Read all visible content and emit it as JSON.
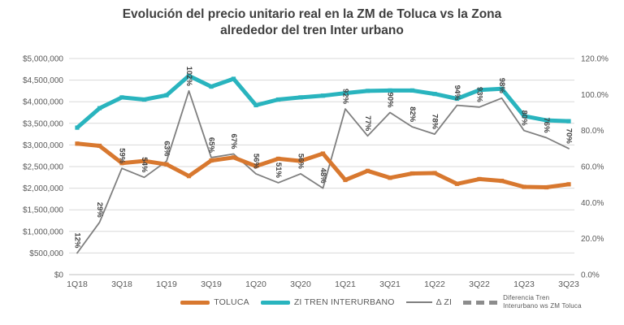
{
  "chart": {
    "title_line1": "Evolución del precio unitario real en la ZM de Toluca vs la Zona",
    "title_line2": "alrededor del tren Inter urbano"
  },
  "legend": {
    "toluca": "TOLUCA",
    "zi": "ZI TREN INTERURBANO",
    "delta": "Δ ZI",
    "diff_line1": "Diferencia Tren",
    "diff_line2": "Interurbano ws ZM Toluca"
  },
  "colors": {
    "toluca": "#d8782f",
    "zi": "#29b4be",
    "delta": "#7f7f7f",
    "gridline": "#d9d9d9",
    "axis_line": "#bfbfbf",
    "axis_text": "#595959",
    "label_text": "#404040"
  },
  "chart_data": {
    "type": "line",
    "title": "Evolución del precio unitario real en la ZM de Toluca vs la Zona alrededor del tren Inter urbano",
    "categories": [
      "1Q18",
      "2Q18",
      "3Q18",
      "4Q18",
      "1Q19",
      "2Q19",
      "3Q19",
      "4Q19",
      "1Q20",
      "2Q20",
      "3Q20",
      "4Q20",
      "1Q21",
      "2Q21",
      "3Q21",
      "4Q21",
      "1Q22",
      "2Q22",
      "3Q22",
      "4Q22",
      "1Q23",
      "2Q23",
      "3Q23"
    ],
    "x_tick_labels": [
      "1Q18",
      "3Q18",
      "1Q19",
      "3Q19",
      "1Q20",
      "3Q20",
      "1Q21",
      "3Q21",
      "1Q22",
      "3Q22",
      "1Q23",
      "3Q23"
    ],
    "left_axis": {
      "min": 0,
      "max": 5000000,
      "tick_labels_top_down": [
        "$5,000,000",
        "$4,500,000",
        "$4,000,000",
        "$3,500,000",
        "$3,000,000",
        "$2,500,000",
        "$2,000,000",
        "$1,500,000",
        "$1,000,000",
        "$500,000",
        "$0"
      ]
    },
    "right_axis": {
      "min": 0,
      "max": 120,
      "tick_labels_top_down": [
        "120.0%",
        "100.0%",
        "80.0%",
        "60.0%",
        "40.0%",
        "20.0%",
        "0.0%"
      ]
    },
    "grid": true,
    "legend_position": "bottom",
    "series": [
      {
        "name": "TOLUCA",
        "axis": "left",
        "color": "#d8782f",
        "values": [
          3030000,
          2980000,
          2580000,
          2630000,
          2550000,
          2280000,
          2640000,
          2710000,
          2510000,
          2680000,
          2630000,
          2800000,
          2190000,
          2400000,
          2240000,
          2340000,
          2350000,
          2100000,
          2210000,
          2170000,
          2030000,
          2020000,
          2090000
        ]
      },
      {
        "name": "ZI TREN INTERURBANO",
        "axis": "left",
        "color": "#29b4be",
        "values": [
          3400000,
          3850000,
          4100000,
          4050000,
          4150000,
          4600000,
          4350000,
          4530000,
          3920000,
          4050000,
          4100000,
          4140000,
          4200000,
          4250000,
          4260000,
          4260000,
          4180000,
          4070000,
          4270000,
          4300000,
          3670000,
          3570000,
          3550000
        ]
      },
      {
        "name": "Δ ZI",
        "axis": "right",
        "color": "#7f7f7f",
        "data_labels": true,
        "values": [
          12,
          29,
          59,
          54,
          63,
          102,
          65,
          67,
          56,
          51,
          56,
          48,
          92,
          77,
          90,
          82,
          78,
          94,
          93,
          98,
          80,
          76,
          70
        ]
      },
      {
        "name": "Diferencia Tren Interurbano ws ZM Toluca",
        "axis": "right",
        "style": "dashed",
        "note": "legend-only entry; rendered as the labeled Δ ZI percentages",
        "values": [
          12,
          29,
          59,
          54,
          63,
          102,
          65,
          67,
          56,
          51,
          56,
          48,
          92,
          77,
          90,
          82,
          78,
          94,
          93,
          98,
          80,
          76,
          70
        ]
      }
    ]
  }
}
